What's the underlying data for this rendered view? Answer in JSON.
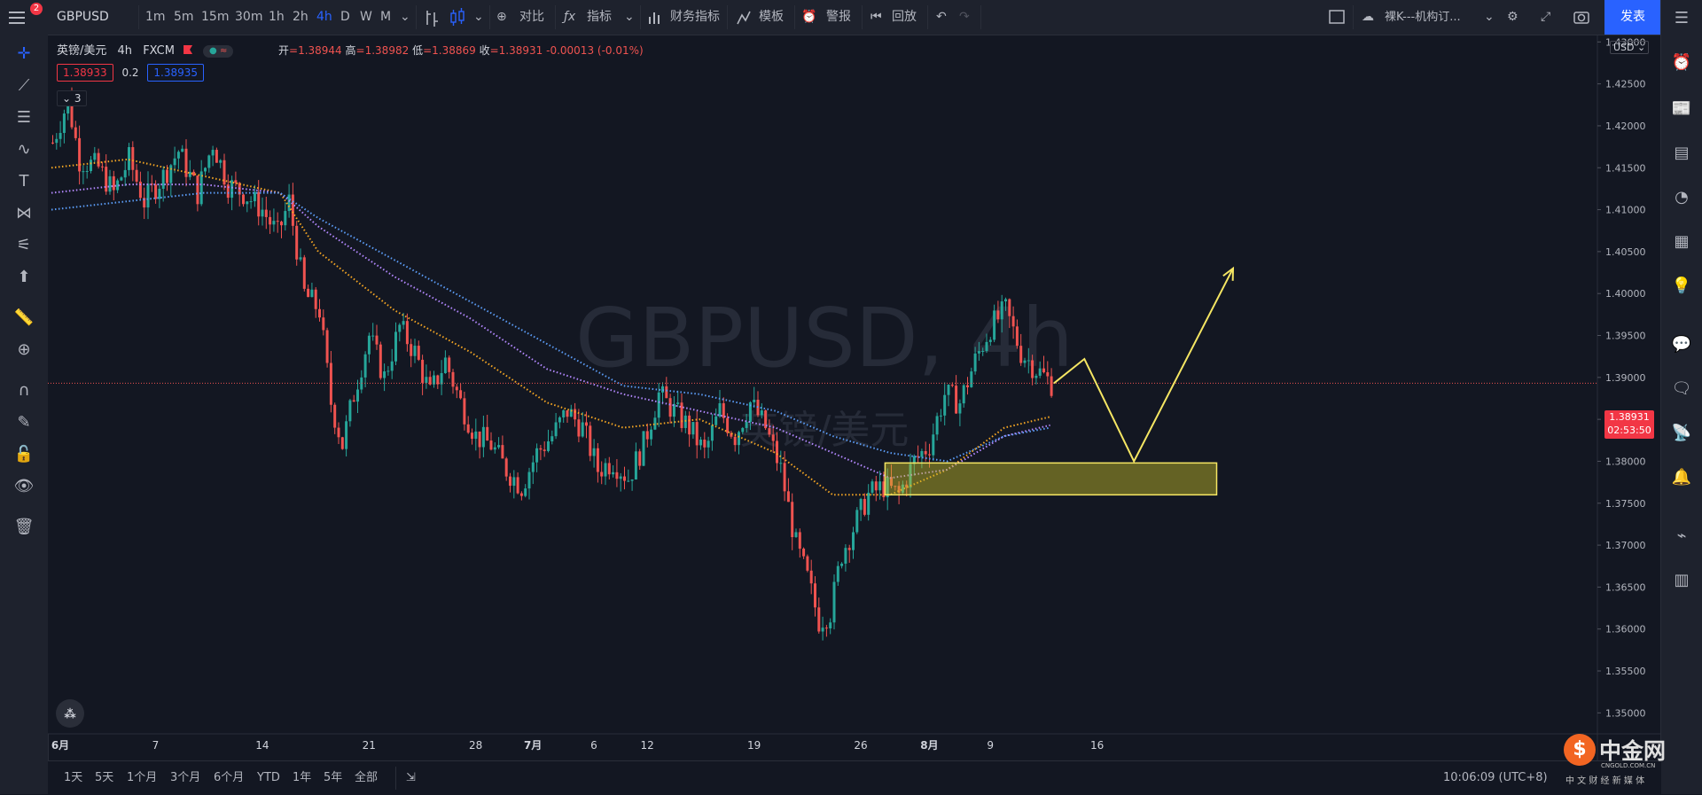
{
  "topbar": {
    "symbol": "GBPUSD",
    "intervals": [
      "1m",
      "5m",
      "15m",
      "30m",
      "1h",
      "2h",
      "4h",
      "D",
      "W",
      "M"
    ],
    "active_interval": "4h",
    "compare": "对比",
    "indicators": "指标",
    "financials": "财务指标",
    "templates": "模板",
    "alerts": "警报",
    "replay": "回放",
    "layout_name": "裸K---机构订...",
    "publish": "发表",
    "badge_count": "2"
  },
  "legend": {
    "title": "英镑/美元",
    "interval": "4h",
    "source": "FXCM",
    "open_label": "开",
    "open": "=1.38944",
    "high_label": "高",
    "high": "=1.38982",
    "low_label": "低",
    "low": "=1.38869",
    "close_label": "收",
    "close": "=1.38931",
    "change": "-0.00013 (-0.01%)",
    "sell": "1.38933",
    "spread": "0.2",
    "buy": "1.38935",
    "indicators_count": "3"
  },
  "watermark": {
    "main": "GBPUSD, 4h",
    "sub": "英镑/美元"
  },
  "price_axis": {
    "currency": "USD",
    "current_price": "1.38931",
    "countdown": "02:53:50"
  },
  "bottombar": {
    "ranges": [
      "1天",
      "5天",
      "1个月",
      "3个月",
      "6个月",
      "YTD",
      "1年",
      "5年",
      "全部"
    ],
    "time": "10:06:09 (UTC+8)"
  },
  "logo": {
    "name": "中金网",
    "domain": "CNGOLD.COM.CN",
    "tagline": "中 文 财 经 新 媒 体"
  },
  "colors": {
    "up": "#26a69a",
    "down": "#ef5350",
    "ma_fast": "#f5a623",
    "ma_mid": "#b388ff",
    "ma_slow": "#5b9cf6",
    "zone": "#f5e663",
    "accent": "#2962ff"
  },
  "chart_data": {
    "type": "candlestick",
    "title": "GBPUSD, 4h",
    "x_ticks": [
      "6月",
      "7",
      "14",
      "21",
      "28",
      "7月",
      "6",
      "12",
      "19",
      "26",
      "8月",
      "9",
      "16"
    ],
    "y_ticks": [
      "1.43000",
      "1.42500",
      "1.42000",
      "1.41500",
      "1.41000",
      "1.40500",
      "1.40000",
      "1.39500",
      "1.39000",
      "1.38500",
      "1.38000",
      "1.37500",
      "1.37000",
      "1.36500",
      "1.36000",
      "1.35500",
      "1.35000"
    ],
    "ylim": [
      1.35,
      1.435
    ],
    "close_path": [
      [
        0,
        1.418
      ],
      [
        4,
        1.423
      ],
      [
        7,
        1.416
      ],
      [
        12,
        1.415
      ],
      [
        16,
        1.412
      ],
      [
        20,
        1.416
      ],
      [
        24,
        1.411
      ],
      [
        29,
        1.414
      ],
      [
        33,
        1.417
      ],
      [
        38,
        1.412
      ],
      [
        42,
        1.418
      ],
      [
        46,
        1.413
      ],
      [
        50,
        1.412
      ],
      [
        55,
        1.41
      ],
      [
        59,
        1.407
      ],
      [
        62,
        1.411
      ],
      [
        66,
        1.4
      ],
      [
        70,
        1.398
      ],
      [
        73,
        1.387
      ],
      [
        76,
        1.382
      ],
      [
        79,
        1.388
      ],
      [
        83,
        1.395
      ],
      [
        87,
        1.39
      ],
      [
        91,
        1.396
      ],
      [
        95,
        1.393
      ],
      [
        99,
        1.388
      ],
      [
        103,
        1.392
      ],
      [
        107,
        1.387
      ],
      [
        111,
        1.383
      ],
      [
        115,
        1.382
      ],
      [
        119,
        1.379
      ],
      [
        123,
        1.377
      ],
      [
        127,
        1.381
      ],
      [
        131,
        1.383
      ],
      [
        135,
        1.386
      ],
      [
        139,
        1.384
      ],
      [
        143,
        1.379
      ],
      [
        147,
        1.38
      ],
      [
        151,
        1.378
      ],
      [
        155,
        1.382
      ],
      [
        159,
        1.388
      ],
      [
        163,
        1.386
      ],
      [
        167,
        1.384
      ],
      [
        171,
        1.381
      ],
      [
        175,
        1.386
      ],
      [
        179,
        1.383
      ],
      [
        183,
        1.387
      ],
      [
        187,
        1.384
      ],
      [
        191,
        1.379
      ],
      [
        195,
        1.37
      ],
      [
        198,
        1.366
      ],
      [
        201,
        1.361
      ],
      [
        204,
        1.362
      ],
      [
        207,
        1.369
      ],
      [
        210,
        1.372
      ],
      [
        214,
        1.376
      ],
      [
        218,
        1.377
      ],
      [
        222,
        1.376
      ],
      [
        226,
        1.38
      ],
      [
        230,
        1.382
      ],
      [
        234,
        1.388
      ],
      [
        238,
        1.387
      ],
      [
        242,
        1.392
      ],
      [
        246,
        1.396
      ],
      [
        250,
        1.398
      ],
      [
        254,
        1.393
      ],
      [
        258,
        1.391
      ],
      [
        262,
        1.3893
      ]
    ],
    "moving_averages": [
      {
        "color": "#f5a623",
        "values": [
          [
            0,
            1.415
          ],
          [
            20,
            1.416
          ],
          [
            40,
            1.414
          ],
          [
            60,
            1.412
          ],
          [
            70,
            1.405
          ],
          [
            90,
            1.398
          ],
          [
            110,
            1.393
          ],
          [
            130,
            1.387
          ],
          [
            150,
            1.384
          ],
          [
            170,
            1.385
          ],
          [
            190,
            1.381
          ],
          [
            205,
            1.376
          ],
          [
            220,
            1.376
          ],
          [
            235,
            1.379
          ],
          [
            250,
            1.384
          ],
          [
            262,
            1.3853
          ]
        ]
      },
      {
        "color": "#b388ff",
        "values": [
          [
            0,
            1.412
          ],
          [
            20,
            1.413
          ],
          [
            40,
            1.413
          ],
          [
            60,
            1.412
          ],
          [
            70,
            1.408
          ],
          [
            90,
            1.402
          ],
          [
            110,
            1.397
          ],
          [
            130,
            1.391
          ],
          [
            150,
            1.388
          ],
          [
            170,
            1.386
          ],
          [
            190,
            1.384
          ],
          [
            205,
            1.381
          ],
          [
            220,
            1.378
          ],
          [
            235,
            1.379
          ],
          [
            250,
            1.383
          ],
          [
            262,
            1.3843
          ]
        ]
      },
      {
        "color": "#5b9cf6",
        "values": [
          [
            0,
            1.41
          ],
          [
            20,
            1.411
          ],
          [
            40,
            1.412
          ],
          [
            60,
            1.412
          ],
          [
            70,
            1.409
          ],
          [
            90,
            1.404
          ],
          [
            110,
            1.399
          ],
          [
            130,
            1.394
          ],
          [
            150,
            1.389
          ],
          [
            170,
            1.388
          ],
          [
            190,
            1.386
          ],
          [
            205,
            1.383
          ],
          [
            220,
            1.381
          ],
          [
            235,
            1.38
          ],
          [
            250,
            1.383
          ],
          [
            262,
            1.384
          ]
        ]
      }
    ],
    "zone": {
      "x0": 218,
      "x1": 305,
      "top": 1.3798,
      "bottom": 1.376
    },
    "projection": [
      [
        263,
        1.3893
      ],
      [
        271,
        1.3922
      ],
      [
        284,
        1.38
      ],
      [
        310,
        1.403
      ]
    ],
    "last_price": 1.38931
  }
}
